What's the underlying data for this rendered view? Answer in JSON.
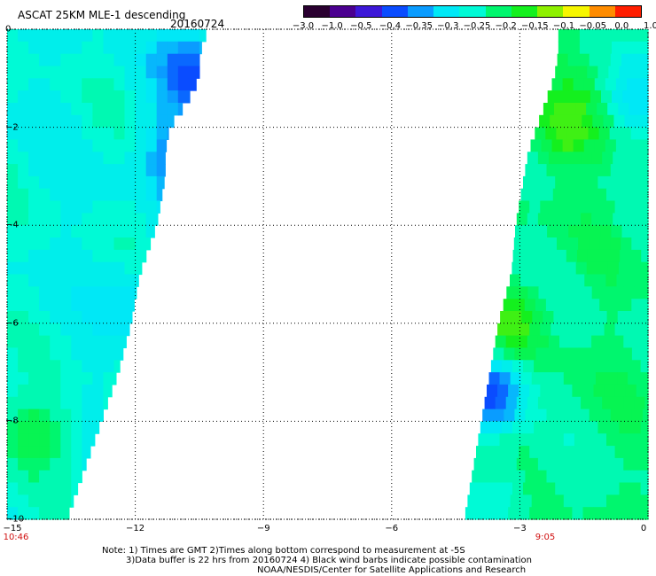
{
  "header": {
    "title": "ASCAT 25KM MLE-1 descending",
    "date": "20160724"
  },
  "colorbar": {
    "labels": [
      "-3.0",
      "-1.0",
      "-0.5",
      "-0.4",
      "-0.35",
      "-0.3",
      "-0.25",
      "-0.2",
      "-0.15",
      "-0.1",
      "-0.05",
      "0.0",
      "1.0"
    ],
    "colors": [
      "#2a0030",
      "#4b0090",
      "#3d18d8",
      "#0a4cff",
      "#0a9cff",
      "#00e8f6",
      "#00fad6",
      "#00f66e",
      "#14f01e",
      "#8ef000",
      "#f6f600",
      "#ff8c00",
      "#ff1e00"
    ]
  },
  "axes": {
    "x_ticks": [
      "-15",
      "-12",
      "-9",
      "-6",
      "-3",
      "0"
    ],
    "y_ticks": [
      "0",
      "-2",
      "-4",
      "-6",
      "-8",
      "-10"
    ],
    "xlim": [
      -15,
      0
    ],
    "ylim": [
      -10,
      0
    ],
    "grid": "dotted"
  },
  "times": {
    "left": "10:46",
    "right": "9:05"
  },
  "notes": {
    "line1": "Note: 1) Times are GMT 2)Times along bottom correspond to measurement at -5S",
    "line2": "3)Data buffer is 22 hrs from 20160724 4) Black wind barbs indicate possible contamination",
    "line3": "NOAA/NESDIS/Center for Satellite Applications and Research"
  },
  "chart_data": {
    "type": "heatmap",
    "title": "ASCAT 25KM MLE-1 descending",
    "xlim": [
      -15,
      0
    ],
    "ylim": [
      -10,
      0
    ],
    "swaths": [
      {
        "name": "",
        "edge": [
          [
            0,
            -10.3
          ],
          [
            0.5,
            -10.5
          ],
          [
            1,
            -10.5
          ],
          [
            1.5,
            -10.8
          ],
          [
            2,
            -11.2
          ],
          [
            2.5,
            -11.3
          ],
          [
            3,
            -11.3
          ],
          [
            4,
            -11.5
          ],
          [
            5,
            -11.9
          ],
          [
            6,
            -12.1
          ],
          [
            7,
            -12.4
          ],
          [
            8,
            -12.8
          ],
          [
            9,
            -13.2
          ],
          [
            10,
            -13.6
          ]
        ],
        "dominant_value": -0.25,
        "features": [
          {
            "lat": -0.8,
            "lon": -10.8,
            "value": -0.4
          },
          {
            "lat": -2.5,
            "lon": -11.0,
            "value": -0.4
          },
          {
            "lat": -5.5,
            "lon": -12.5,
            "value": -0.3
          },
          {
            "lat": -8.2,
            "lon": -14.5,
            "value": -0.15
          }
        ]
      },
      {
        "name": "",
        "edge": [
          [
            0,
            -2.1
          ],
          [
            0.5,
            -2.1
          ],
          [
            1,
            -2.2
          ],
          [
            1.5,
            -2.4
          ],
          [
            2,
            -2.6
          ],
          [
            2.5,
            -2.8
          ],
          [
            3,
            -2.9
          ],
          [
            4,
            -3.1
          ],
          [
            5,
            -3.2
          ],
          [
            6,
            -3.5
          ],
          [
            7,
            -3.7
          ],
          [
            8,
            -3.9
          ],
          [
            9,
            -4.1
          ],
          [
            10,
            -4.3
          ]
        ],
        "dominant_value": -0.2,
        "features": [
          {
            "lat": -1.8,
            "lon": -2.0,
            "value": -0.1
          },
          {
            "lat": -1.2,
            "lon": -0.3,
            "value": -0.3
          },
          {
            "lat": -6.0,
            "lon": -3.4,
            "value": -0.1
          },
          {
            "lat": -7.3,
            "lon": -3.8,
            "value": -0.4
          },
          {
            "lat": -9.5,
            "lon": -3.7,
            "value": -0.25
          }
        ]
      }
    ]
  }
}
